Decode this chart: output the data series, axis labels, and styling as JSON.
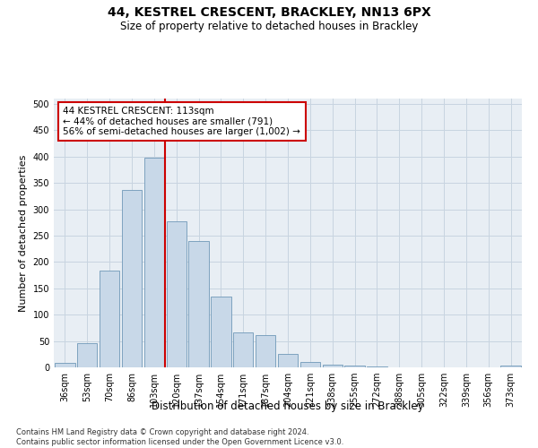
{
  "title": "44, KESTREL CRESCENT, BRACKLEY, NN13 6PX",
  "subtitle": "Size of property relative to detached houses in Brackley",
  "xlabel": "Distribution of detached houses by size in Brackley",
  "ylabel": "Number of detached properties",
  "bar_labels": [
    "36sqm",
    "53sqm",
    "70sqm",
    "86sqm",
    "103sqm",
    "120sqm",
    "137sqm",
    "154sqm",
    "171sqm",
    "187sqm",
    "204sqm",
    "221sqm",
    "238sqm",
    "255sqm",
    "272sqm",
    "288sqm",
    "305sqm",
    "322sqm",
    "339sqm",
    "356sqm",
    "373sqm"
  ],
  "bar_values": [
    8,
    46,
    184,
    337,
    397,
    277,
    239,
    135,
    67,
    61,
    25,
    11,
    5,
    3,
    2,
    0,
    0,
    0,
    0,
    0,
    3
  ],
  "bar_color": "#c8d8e8",
  "bar_edge_color": "#7099b8",
  "vline_color": "#cc0000",
  "annotation_text": "44 KESTREL CRESCENT: 113sqm\n← 44% of detached houses are smaller (791)\n56% of semi-detached houses are larger (1,002) →",
  "annotation_box_color": "#ffffff",
  "annotation_box_edge": "#cc0000",
  "ylim": [
    0,
    510
  ],
  "yticks": [
    0,
    50,
    100,
    150,
    200,
    250,
    300,
    350,
    400,
    450,
    500
  ],
  "grid_color": "#c8d4e0",
  "background_color": "#e8eef4",
  "footer": "Contains HM Land Registry data © Crown copyright and database right 2024.\nContains public sector information licensed under the Open Government Licence v3.0.",
  "title_fontsize": 10,
  "subtitle_fontsize": 8.5,
  "xlabel_fontsize": 8.5,
  "ylabel_fontsize": 8,
  "tick_fontsize": 7,
  "annotation_fontsize": 7.5,
  "footer_fontsize": 6
}
